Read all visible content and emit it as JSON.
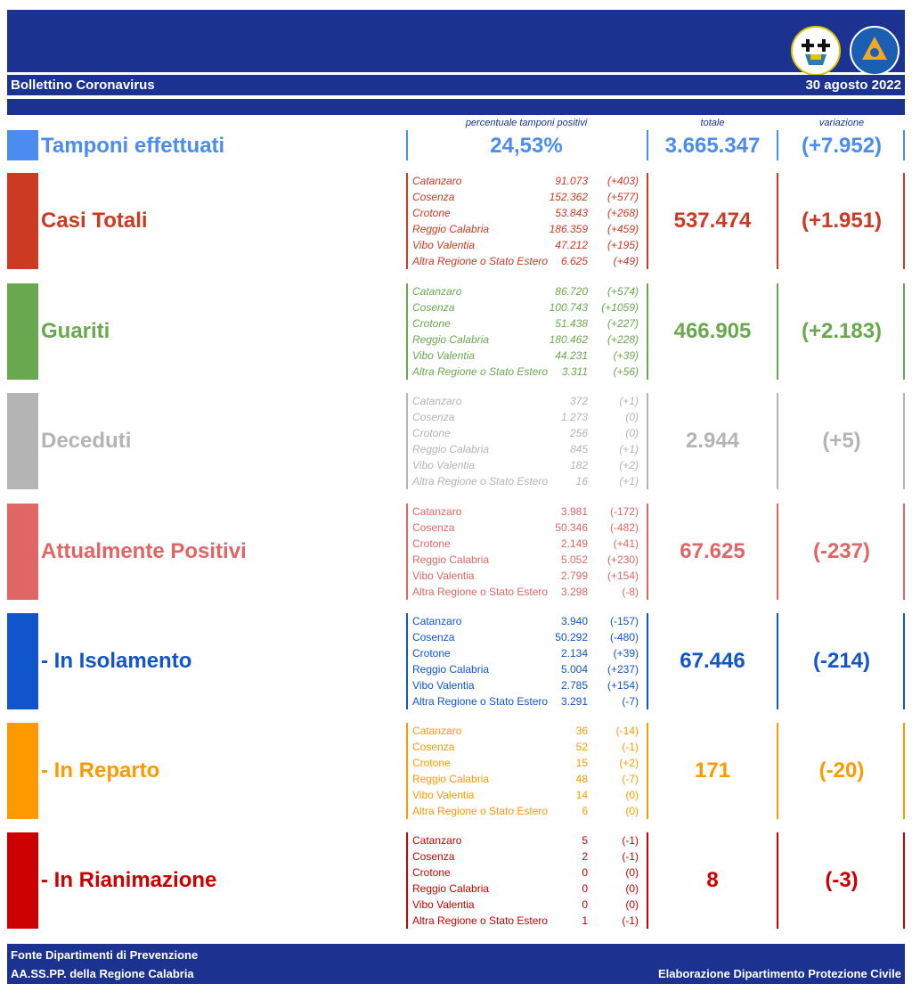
{
  "header": {
    "title": "Bollettino Coronavirus",
    "date": "30 agosto 2022",
    "col_pct": "percentuale tamponi positivi",
    "col_total": "totale",
    "col_var": "variazione"
  },
  "colors": {
    "banner": "#1c3290"
  },
  "tamponi": {
    "label": "Tamponi effettuati",
    "pct": "24,53%",
    "total": "3.665.347",
    "var": "(+7.952)",
    "color": "#4a8cf0"
  },
  "sections": [
    {
      "label": "Casi Totali",
      "total": "537.474",
      "var": "(+1.951)",
      "color": "#cc3a24",
      "rows": [
        {
          "p": "Catanzaro",
          "v": "91.073",
          "d": "(+403)"
        },
        {
          "p": "Cosenza",
          "v": "152.362",
          "d": "(+577)"
        },
        {
          "p": "Crotone",
          "v": "53.843",
          "d": "(+268)"
        },
        {
          "p": "Reggio Calabria",
          "v": "186.359",
          "d": "(+459)"
        },
        {
          "p": "Vibo Valentia",
          "v": "47.212",
          "d": "(+195)"
        },
        {
          "p": "Altra Regione o Stato Estero",
          "v": "6.625",
          "d": "(+49)"
        }
      ]
    },
    {
      "label": "Guariti",
      "total": "466.905",
      "var": "(+2.183)",
      "color": "#6aa84f",
      "rows": [
        {
          "p": "Catanzaro",
          "v": "86.720",
          "d": "(+574)"
        },
        {
          "p": "Cosenza",
          "v": "100.743",
          "d": "(+1059)"
        },
        {
          "p": "Crotone",
          "v": "51.438",
          "d": "(+227)"
        },
        {
          "p": "Reggio Calabria",
          "v": "180.462",
          "d": "(+228)"
        },
        {
          "p": "Vibo Valentia",
          "v": "44.231",
          "d": "(+39)"
        },
        {
          "p": "Altra Regione o Stato Estero",
          "v": "3.311",
          "d": "(+56)"
        }
      ]
    },
    {
      "label": "Deceduti",
      "total": "2.944",
      "var": "(+5)",
      "color": "#b4b4b4",
      "rows": [
        {
          "p": "Catanzaro",
          "v": "372",
          "d": "(+1)"
        },
        {
          "p": "Cosenza",
          "v": "1.273",
          "d": "(0)"
        },
        {
          "p": "Crotone",
          "v": "256",
          "d": "(0)"
        },
        {
          "p": "Reggio Calabria",
          "v": "845",
          "d": "(+1)"
        },
        {
          "p": "Vibo Valentia",
          "v": "182",
          "d": "(+2)"
        },
        {
          "p": "Altra Regione o Stato Estero",
          "v": "16",
          "d": "(+1)"
        }
      ]
    },
    {
      "label": "Attualmente Positivi",
      "total": "67.625",
      "var": "(-237)",
      "color": "#e06666",
      "rows": [
        {
          "p": "Catanzaro",
          "v": "3.981",
          "d": "(-172)"
        },
        {
          "p": "Cosenza",
          "v": "50.346",
          "d": "(-482)"
        },
        {
          "p": "Crotone",
          "v": "2.149",
          "d": "(+41)"
        },
        {
          "p": "Reggio Calabria",
          "v": "5.052",
          "d": "(+230)"
        },
        {
          "p": "Vibo Valentia",
          "v": "2.799",
          "d": "(+154)"
        },
        {
          "p": "Altra Regione o Stato Estero",
          "v": "3.298",
          "d": "(-8)"
        }
      ]
    },
    {
      "label": "- In Isolamento",
      "total": "67.446",
      "var": "(-214)",
      "color": "#1155cc",
      "rows": [
        {
          "p": "Catanzaro",
          "v": "3.940",
          "d": "(-157)"
        },
        {
          "p": "Cosenza",
          "v": "50.292",
          "d": "(-480)"
        },
        {
          "p": "Crotone",
          "v": "2.134",
          "d": "(+39)"
        },
        {
          "p": "Reggio Calabria",
          "v": "5.004",
          "d": "(+237)"
        },
        {
          "p": "Vibo Valentia",
          "v": "2.785",
          "d": "(+154)"
        },
        {
          "p": "Altra Regione o Stato Estero",
          "v": "3.291",
          "d": "(-7)"
        }
      ]
    },
    {
      "label": "- In Reparto",
      "total": "171",
      "var": "(-20)",
      "color": "#ff9900",
      "rows": [
        {
          "p": "Catanzaro",
          "v": "36",
          "d": "(-14)"
        },
        {
          "p": "Cosenza",
          "v": "52",
          "d": "(-1)"
        },
        {
          "p": "Crotone",
          "v": "15",
          "d": "(+2)"
        },
        {
          "p": "Reggio Calabria",
          "v": "48",
          "d": "(-7)"
        },
        {
          "p": "Vibo Valentia",
          "v": "14",
          "d": "(0)"
        },
        {
          "p": "Altra Regione o Stato Estero",
          "v": "6",
          "d": "(0)"
        }
      ]
    },
    {
      "label": "- In Rianimazione",
      "total": "8",
      "var": "(-3)",
      "color": "#cc0000",
      "rows": [
        {
          "p": "Catanzaro",
          "v": "5",
          "d": "(-1)"
        },
        {
          "p": "Cosenza",
          "v": "2",
          "d": "(-1)"
        },
        {
          "p": "Crotone",
          "v": "0",
          "d": "(0)"
        },
        {
          "p": "Reggio Calabria",
          "v": "0",
          "d": "(0)"
        },
        {
          "p": "Vibo Valentia",
          "v": "0",
          "d": "(0)"
        },
        {
          "p": "Altra Regione o Stato Estero",
          "v": "1",
          "d": "(-1)"
        }
      ]
    }
  ],
  "footer": {
    "line1": "Fonte Dipartimenti di Prevenzione",
    "line2": "AA.SS.PP.  della Regione Calabria",
    "credit": "Elaborazione Dipartimento Protezione Civile"
  }
}
